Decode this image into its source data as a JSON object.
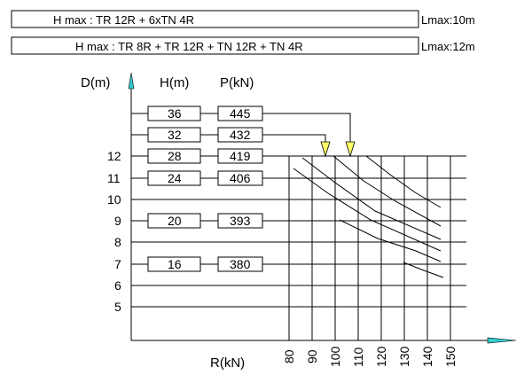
{
  "header": {
    "rows": [
      {
        "config": "H max :  TR 12R + 6xTN 4R",
        "lmax": "Lmax:10m"
      },
      {
        "config": "H max :  TR 8R + TR 12R + TN 12R + TN 4R",
        "lmax": "Lmax:12m"
      }
    ]
  },
  "axes": {
    "y_label": "D(m)",
    "x_label": "R(kN)",
    "h_label": "H(m)",
    "p_label": "P(kN)",
    "d_ticks": [
      "12",
      "11",
      "10",
      "9",
      "8",
      "7",
      "6",
      "5"
    ],
    "r_ticks": [
      "80",
      "90",
      "100",
      "110",
      "120",
      "130",
      "140",
      "150"
    ]
  },
  "table": {
    "rows": [
      {
        "h": "36",
        "p": "445"
      },
      {
        "h": "32",
        "p": "432"
      },
      {
        "h": "28",
        "p": "419"
      },
      {
        "h": "24",
        "p": "406"
      },
      {
        "h": "20",
        "p": "393"
      },
      {
        "h": "16",
        "p": "380"
      }
    ]
  },
  "colors": {
    "line": "#000000",
    "marker_fill": "#ffff66",
    "axis_arrow": "#33cccc"
  }
}
